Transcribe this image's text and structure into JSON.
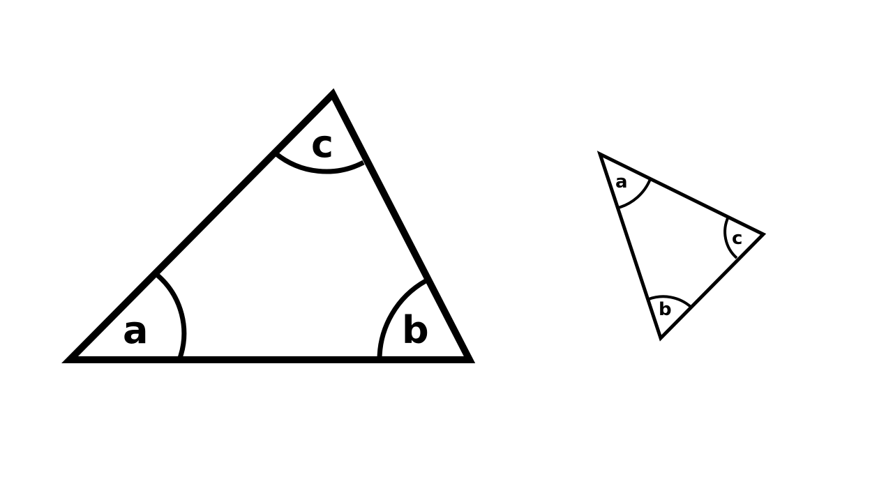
{
  "large_triangle": {
    "angle_labels": {
      "a": "a",
      "b": "b",
      "c": "c"
    }
  },
  "small_triangle": {
    "angle_labels": {
      "a": "a",
      "b": "b",
      "c": "c"
    }
  }
}
